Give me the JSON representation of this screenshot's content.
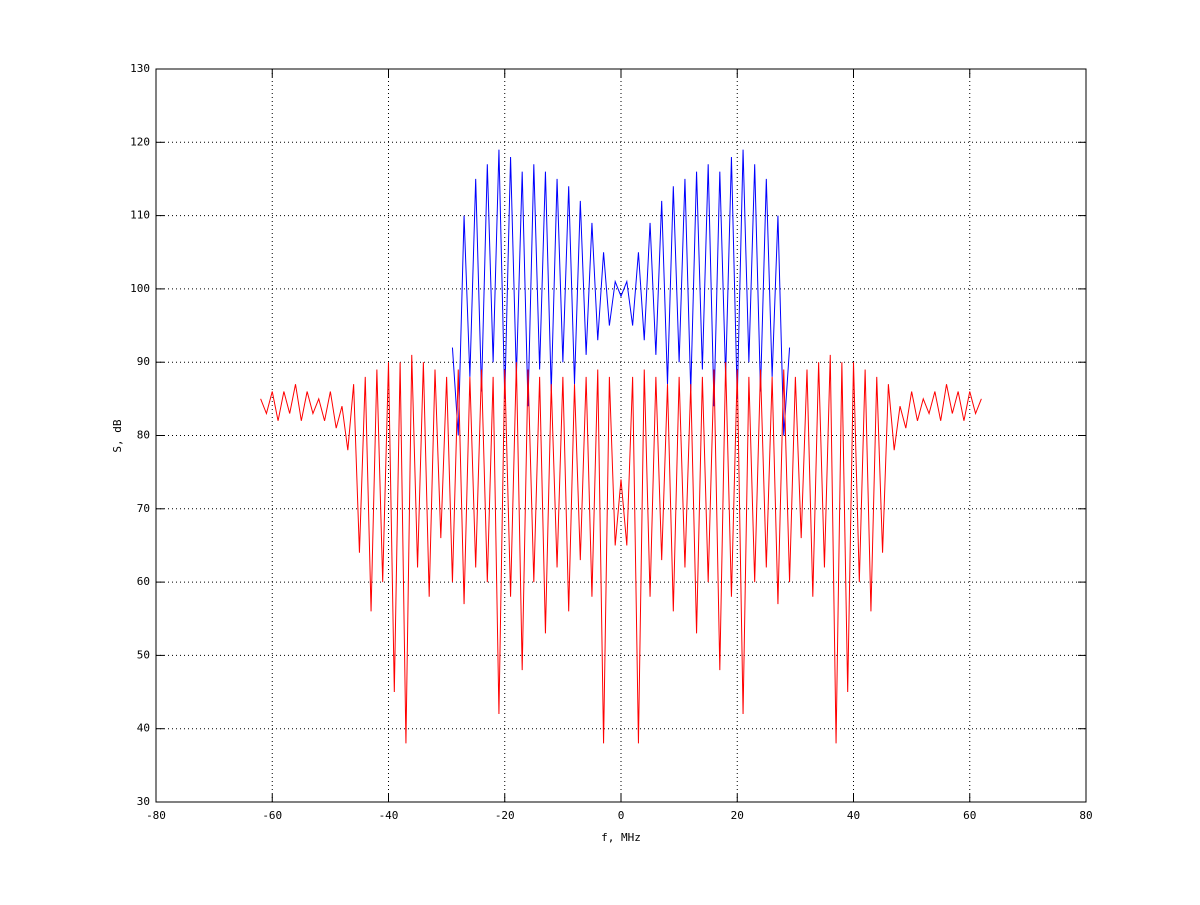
{
  "chart_data": {
    "type": "line",
    "xlabel": "f, MHz",
    "ylabel": "S, dB",
    "xlim": [
      -80,
      80
    ],
    "xticks": [
      -80,
      -60,
      -40,
      -20,
      0,
      20,
      40,
      60,
      80
    ],
    "ylim": [
      30,
      130
    ],
    "yticks": [
      30,
      40,
      50,
      60,
      70,
      80,
      90,
      100,
      110,
      120,
      130
    ],
    "grid": true,
    "series": [
      {
        "color": "#0000ff",
        "x": [
          -29,
          -28,
          -27,
          -26,
          -25,
          -24,
          -23,
          -22,
          -21,
          -20,
          -19,
          -18,
          -17,
          -16,
          -15,
          -14,
          -13,
          -12,
          -11,
          -10,
          -9,
          -8,
          -7,
          -6,
          -5,
          -4,
          -3,
          -2,
          -1,
          0,
          1,
          2,
          3,
          4,
          5,
          6,
          7,
          8,
          9,
          10,
          11,
          12,
          13,
          14,
          15,
          16,
          17,
          18,
          19,
          20,
          21,
          22,
          23,
          24,
          25,
          26,
          27,
          28,
          29
        ],
        "values": [
          92,
          80,
          110,
          88,
          115,
          86,
          117,
          90,
          119,
          85,
          118,
          88,
          116,
          84,
          117,
          89,
          116,
          86,
          115,
          90,
          114,
          87,
          112,
          91,
          109,
          93,
          105,
          95,
          101,
          99,
          101,
          95,
          105,
          93,
          109,
          91,
          112,
          87,
          114,
          90,
          115,
          86,
          116,
          89,
          117,
          84,
          116,
          88,
          118,
          85,
          119,
          90,
          117,
          86,
          115,
          88,
          110,
          80,
          92
        ]
      },
      {
        "color": "#ff0000",
        "x": [
          -62,
          -61,
          -60,
          -59,
          -58,
          -57,
          -56,
          -55,
          -54,
          -53,
          -52,
          -51,
          -50,
          -49,
          -48,
          -47,
          -46,
          -45,
          -44,
          -43,
          -42,
          -41,
          -40,
          -39,
          -38,
          -37,
          -36,
          -35,
          -34,
          -33,
          -32,
          -31,
          -30,
          -29,
          -28,
          -27,
          -26,
          -25,
          -24,
          -23,
          -22,
          -21,
          -20,
          -19,
          -18,
          -17,
          -16,
          -15,
          -14,
          -13,
          -12,
          -11,
          -10,
          -9,
          -8,
          -7,
          -6,
          -5,
          -4,
          -3,
          -2,
          -1,
          0,
          1,
          2,
          3,
          4,
          5,
          6,
          7,
          8,
          9,
          10,
          11,
          12,
          13,
          14,
          15,
          16,
          17,
          18,
          19,
          20,
          21,
          22,
          23,
          24,
          25,
          26,
          27,
          28,
          29,
          30,
          31,
          32,
          33,
          34,
          35,
          36,
          37,
          38,
          39,
          40,
          41,
          42,
          43,
          44,
          45,
          46,
          47,
          48,
          49,
          50,
          51,
          52,
          53,
          54,
          55,
          56,
          57,
          58,
          59,
          60,
          61,
          62
        ],
        "values": [
          85,
          83,
          86,
          82,
          86,
          83,
          87,
          82,
          86,
          83,
          85,
          82,
          86,
          81,
          84,
          78,
          87,
          64,
          88,
          56,
          89,
          60,
          90,
          45,
          90,
          38,
          91,
          62,
          90,
          58,
          89,
          66,
          88,
          60,
          89,
          57,
          88,
          62,
          89,
          60,
          88,
          42,
          89,
          58,
          90,
          48,
          89,
          60,
          88,
          53,
          87,
          62,
          88,
          56,
          87,
          63,
          88,
          58,
          89,
          38,
          88,
          65,
          74,
          65,
          88,
          38,
          89,
          58,
          88,
          63,
          87,
          56,
          88,
          62,
          87,
          53,
          88,
          60,
          89,
          48,
          90,
          58,
          89,
          42,
          88,
          60,
          89,
          62,
          88,
          57,
          89,
          60,
          88,
          66,
          89,
          58,
          90,
          62,
          91,
          38,
          90,
          45,
          90,
          60,
          89,
          56,
          88,
          64,
          87,
          78,
          84,
          81,
          86,
          82,
          85,
          83,
          86,
          82,
          87,
          83,
          86,
          82,
          86,
          83,
          85
        ]
      }
    ]
  }
}
